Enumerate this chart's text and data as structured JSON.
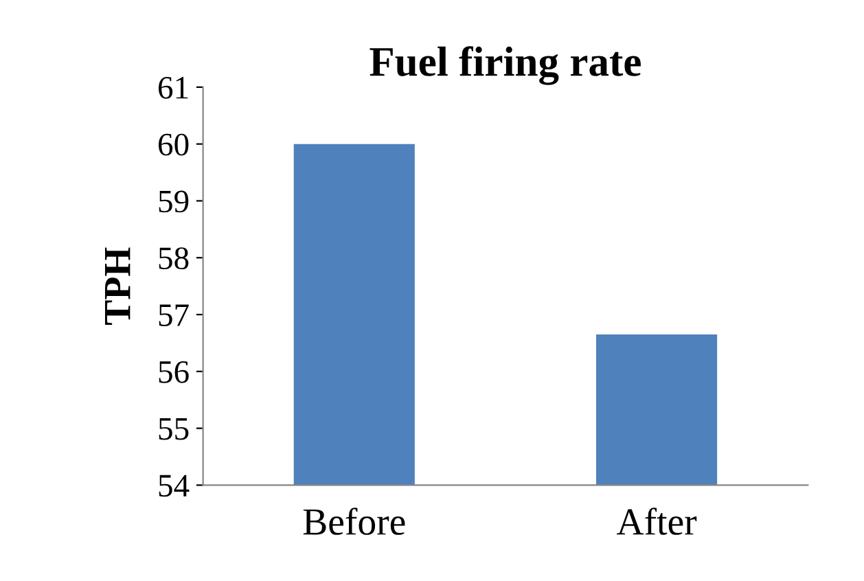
{
  "chart_data": {
    "type": "bar",
    "title": "Fuel firing rate",
    "ylabel": "TPH",
    "categories": [
      "Before",
      "After"
    ],
    "values": [
      60,
      56.65
    ],
    "color": "#4f81bd",
    "ylim": [
      54,
      61
    ],
    "yticks": [
      54,
      55,
      56,
      57,
      58,
      59,
      60,
      61
    ],
    "grid": false
  }
}
